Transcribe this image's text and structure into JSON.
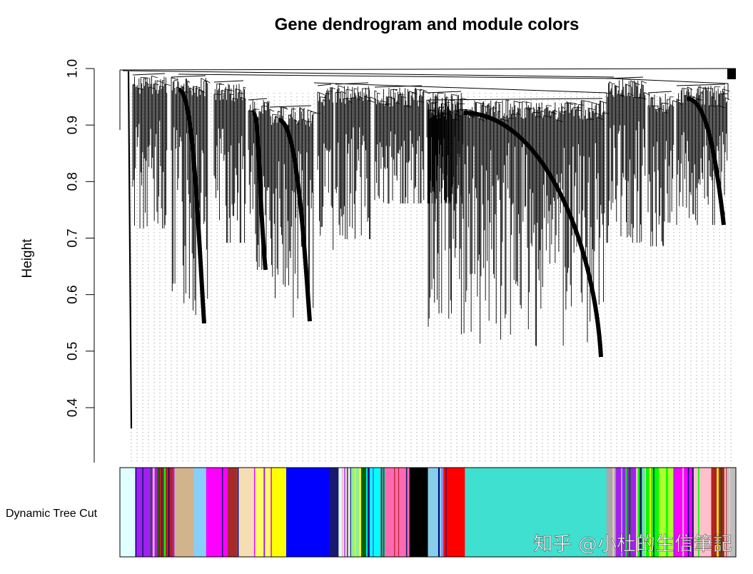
{
  "chart_data": {
    "type": "dendrogram",
    "title": "Gene dendrogram and module colors",
    "ylabel": "Height",
    "xlabel": "",
    "ylim": [
      0.33,
      1.0
    ],
    "yticks": [
      0.4,
      0.5,
      0.6,
      0.7,
      0.8,
      0.9,
      1.0
    ],
    "ytick_labels": [
      "0.4",
      "0.5",
      "0.6",
      "0.7",
      "0.8",
      "0.9",
      "1.0"
    ],
    "grid": false,
    "color_bar": {
      "label": "Dynamic Tree Cut",
      "segments": [
        {
          "from": 0.0,
          "to": 0.025,
          "color": "#e0ffff"
        },
        {
          "from": 0.025,
          "to": 0.06,
          "color": "#a020f0"
        },
        {
          "from": 0.06,
          "to": 0.088,
          "color": "#b22222"
        },
        {
          "from": 0.088,
          "to": 0.12,
          "color": "#d2b48c"
        },
        {
          "from": 0.12,
          "to": 0.14,
          "color": "#87cefa"
        },
        {
          "from": 0.14,
          "to": 0.175,
          "color": "#ff00ff"
        },
        {
          "from": 0.175,
          "to": 0.19,
          "color": "#a52a2a"
        },
        {
          "from": 0.19,
          "to": 0.22,
          "color": "#f5deb3"
        },
        {
          "from": 0.22,
          "to": 0.245,
          "color": "#ffff66"
        },
        {
          "from": 0.245,
          "to": 0.27,
          "color": "#ffff00"
        },
        {
          "from": 0.27,
          "to": 0.34,
          "color": "#0000ff"
        },
        {
          "from": 0.34,
          "to": 0.355,
          "color": "#191970"
        },
        {
          "from": 0.355,
          "to": 0.375,
          "color": "#e0ffff"
        },
        {
          "from": 0.375,
          "to": 0.39,
          "color": "#90ee90"
        },
        {
          "from": 0.39,
          "to": 0.4,
          "color": "#006400"
        },
        {
          "from": 0.4,
          "to": 0.43,
          "color": "#00ffff"
        },
        {
          "from": 0.43,
          "to": 0.47,
          "color": "#ff69b4"
        },
        {
          "from": 0.47,
          "to": 0.5,
          "color": "#000000"
        },
        {
          "from": 0.5,
          "to": 0.525,
          "color": "#87ceeb"
        },
        {
          "from": 0.525,
          "to": 0.56,
          "color": "#ff0000"
        },
        {
          "from": 0.56,
          "to": 0.79,
          "color": "#40e0d0"
        },
        {
          "from": 0.79,
          "to": 0.805,
          "color": "#a9a9a9"
        },
        {
          "from": 0.805,
          "to": 0.84,
          "color": "#a020f0"
        },
        {
          "from": 0.84,
          "to": 0.875,
          "color": "#00ff00"
        },
        {
          "from": 0.875,
          "to": 0.9,
          "color": "#adff2f"
        },
        {
          "from": 0.9,
          "to": 0.93,
          "color": "#ff00ff"
        },
        {
          "from": 0.93,
          "to": 0.96,
          "color": "#ffc0cb"
        },
        {
          "from": 0.96,
          "to": 0.985,
          "color": "#b22222"
        },
        {
          "from": 0.985,
          "to": 1.0,
          "color": "#bebebe"
        }
      ]
    },
    "watermark": "知乎 @小杜的生信筆記"
  }
}
